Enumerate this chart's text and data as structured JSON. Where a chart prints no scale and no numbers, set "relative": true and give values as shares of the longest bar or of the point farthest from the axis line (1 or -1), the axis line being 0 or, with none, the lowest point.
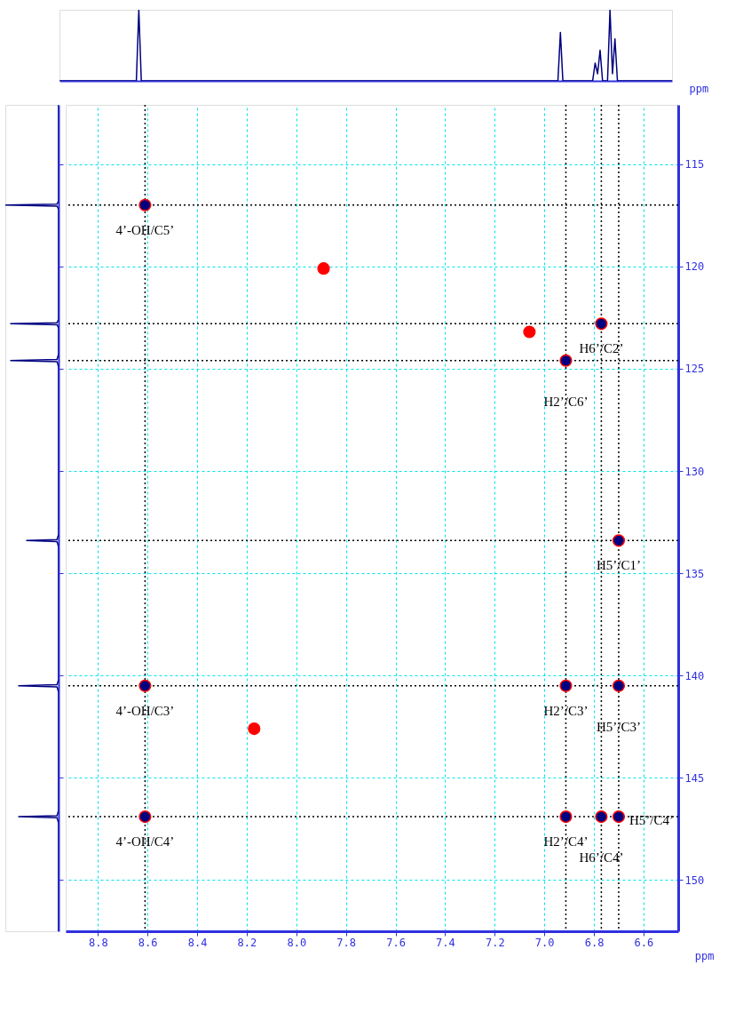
{
  "chart_data": [
    {
      "type": "line",
      "relative": true,
      "tick_labels": false,
      "categories": [
        null,
        null,
        null,
        null,
        null,
        null,
        null,
        null,
        null,
        null,
        null,
        null,
        null,
        null,
        null,
        null,
        null,
        null,
        null,
        null,
        null,
        null,
        null,
        null,
        null,
        null,
        null,
        null,
        null,
        null,
        null,
        null,
        null,
        null,
        null,
        null,
        null,
        null,
        null,
        null,
        null,
        null,
        null,
        null,
        null,
        null,
        null,
        null,
        null,
        null,
        null,
        null,
        null,
        null,
        null,
        null,
        null,
        null,
        null,
        null,
        null,
        null,
        null,
        null,
        null,
        null,
        null,
        null,
        null,
        null,
        null,
        null,
        null,
        null,
        null,
        null,
        null,
        null,
        null,
        null,
        null,
        null,
        null,
        null,
        null,
        null,
        null,
        null,
        null,
        null,
        null,
        null,
        null,
        null,
        null,
        null,
        null,
        null,
        null,
        null,
        null,
        null,
        null,
        null,
        null,
        null,
        null,
        null,
        null,
        null,
        null,
        null,
        null,
        null,
        null,
        null,
        null,
        null,
        null,
        null,
        null,
        null,
        null,
        null,
        null,
        null,
        null,
        null,
        null,
        null,
        null,
        null,
        null,
        null,
        null,
        null,
        null,
        null,
        null,
        null,
        null,
        null,
        null,
        null,
        null,
        null,
        null,
        null,
        null,
        null,
        null,
        null,
        null,
        null,
        null,
        null,
        null,
        null,
        null,
        null,
        null,
        null,
        null,
        null,
        null,
        null,
        null,
        null,
        null,
        null,
        null,
        null,
        null,
        null,
        null,
        null,
        null,
        null,
        null,
        null,
        null,
        null,
        null,
        null,
        null,
        null,
        null,
        null,
        null,
        null,
        null,
        null,
        null,
        null,
        null,
        null,
        null,
        null,
        null,
        null,
        null,
        null,
        null,
        null,
        null,
        null,
        null,
        null,
        null,
        null,
        null,
        null,
        null,
        null,
        null,
        null,
        null,
        null,
        null,
        null,
        null,
        null,
        null,
        null,
        null,
        null,
        null,
        null,
        null,
        null,
        null,
        null,
        null,
        null,
        null,
        null,
        null,
        null,
        null,
        null,
        null,
        null,
        null,
        null,
        null,
        null,
        null,
        null
      ],
      "series": [
        {
          "color": "#000080",
          "values": [
            0,
            0,
            0,
            0,
            0,
            0,
            0,
            0,
            0,
            0,
            0,
            0,
            0,
            0,
            0,
            0,
            0,
            0,
            0,
            0,
            0,
            0,
            0,
            0,
            0,
            0,
            0,
            0,
            0,
            0,
            0,
            0,
            1,
            0,
            0,
            0,
            0,
            0,
            0,
            0,
            0,
            0,
            0,
            0,
            0,
            0,
            0,
            0,
            0,
            0,
            0,
            0,
            0,
            0,
            0,
            0,
            0,
            0,
            0,
            0,
            0,
            0,
            0,
            0,
            0,
            0,
            0,
            0,
            0,
            0,
            0,
            0,
            0,
            0,
            0,
            0,
            0,
            0,
            0,
            0,
            0,
            0,
            0,
            0,
            0,
            0,
            0,
            0,
            0,
            0,
            0,
            0,
            0,
            0,
            0,
            0,
            0,
            0,
            0,
            0,
            0,
            0,
            0,
            0,
            0,
            0,
            0,
            0,
            0,
            0,
            0,
            0,
            0,
            0,
            0,
            0,
            0,
            0,
            0,
            0,
            0,
            0,
            0,
            0,
            0,
            0,
            0,
            0,
            0,
            0,
            0,
            0,
            0,
            0,
            0,
            0,
            0,
            0,
            0,
            0,
            0,
            0,
            0,
            0,
            0,
            0,
            0,
            0,
            0,
            0,
            0,
            0,
            0,
            0,
            0,
            0,
            0,
            0,
            0,
            0,
            0,
            0,
            0,
            0,
            0,
            0,
            0,
            0,
            0,
            0,
            0,
            0,
            0,
            0,
            0,
            0,
            0,
            0,
            0,
            0,
            0,
            0,
            0,
            0,
            0,
            0,
            0,
            0,
            0,
            0,
            0,
            0,
            0,
            0,
            0,
            0,
            0,
            0,
            0,
            0,
            0,
            0,
            0.68,
            0,
            0,
            0,
            0,
            0,
            0,
            0,
            0,
            0,
            0,
            0,
            0,
            0,
            0.25,
            0.1,
            0.43,
            0,
            0,
            0,
            1,
            0.1,
            0.59,
            0,
            0,
            0,
            0,
            0,
            0,
            0,
            0,
            0,
            0,
            0,
            0,
            0,
            0,
            0,
            0,
            0,
            0,
            0,
            0,
            0,
            0,
            0
          ]
        }
      ]
    },
    {
      "type": "line",
      "orientation": "horizontal",
      "relative": true,
      "ylim": [
        152.5,
        112.1
      ],
      "tick_labels": false,
      "yticks": [
        {
          "value": 115,
          "label": null
        },
        {
          "value": 120,
          "label": null
        },
        {
          "value": 125,
          "label": null
        },
        {
          "value": 130,
          "label": null
        },
        {
          "value": 135,
          "label": null
        },
        {
          "value": 140,
          "label": null
        },
        {
          "value": 145,
          "label": null
        },
        {
          "value": 150,
          "label": null
        }
      ],
      "series": [
        {
          "color": "#000080",
          "x": [
            112.1,
            116.8,
            116.95,
            117.0,
            117.05,
            117.2,
            122.6,
            122.75,
            122.8,
            122.85,
            123.0,
            124.3,
            124.55,
            124.6,
            124.65,
            124.9,
            133.1,
            133.35,
            133.4,
            133.45,
            133.7,
            140.2,
            140.45,
            140.5,
            140.55,
            140.8,
            146.6,
            146.85,
            146.9,
            146.95,
            147.2,
            152.5
          ],
          "values": [
            0,
            0,
            -0.03,
            -1,
            -0.03,
            0,
            0,
            -0.03,
            -0.9,
            -0.03,
            0,
            0,
            -0.03,
            -0.9,
            -0.03,
            0,
            0,
            -0.03,
            -0.6,
            -0.03,
            0,
            0,
            -0.03,
            -0.75,
            -0.03,
            0,
            0,
            -0.03,
            -0.75,
            -0.03,
            0,
            0
          ]
        }
      ]
    },
    {
      "type": "scatter",
      "xlabel": "ppm",
      "ylabel": "ppm",
      "xlim": [
        8.93,
        6.46
      ],
      "ylim": [
        152.5,
        112.1
      ],
      "xticks": [
        8.8,
        8.6,
        8.4,
        8.2,
        {
          "value": 8,
          "label": "8.0"
        },
        7.8,
        7.6,
        7.4,
        7.2,
        {
          "value": 7,
          "label": "7.0"
        },
        6.8,
        6.6
      ],
      "yticks": [
        115,
        120,
        125,
        130,
        135,
        140,
        145,
        150
      ],
      "grid": true,
      "marker": "circle",
      "series": [
        {
          "color": "#000080",
          "x": [
            8.61,
            8.61,
            8.61,
            6.913,
            6.913,
            6.913,
            6.77,
            6.77,
            6.7,
            6.7,
            6.7
          ],
          "values": [
            117.0,
            140.5,
            146.9,
            124.6,
            140.5,
            146.9,
            122.8,
            146.9,
            133.4,
            140.5,
            146.9
          ]
        },
        {
          "color": "#ff0000",
          "x": [
            7.89,
            7.06,
            8.17
          ],
          "values": [
            120.1,
            123.2,
            142.6
          ]
        }
      ],
      "ref_lines": [
        {
          "axis": "x",
          "value": 8.61,
          "color": "#000000",
          "line_style": "dotted"
        },
        {
          "axis": "x",
          "value": 6.913,
          "color": "#000000",
          "line_style": "dotted"
        },
        {
          "axis": "x",
          "value": 6.77,
          "color": "#000000",
          "line_style": "dotted"
        },
        {
          "axis": "x",
          "value": 6.7,
          "color": "#000000",
          "line_style": "dotted"
        },
        {
          "axis": "y",
          "value": 117.0,
          "color": "#000000",
          "line_style": "dotted"
        },
        {
          "axis": "y",
          "value": 122.8,
          "color": "#000000",
          "line_style": "dotted"
        },
        {
          "axis": "y",
          "value": 124.6,
          "color": "#000000",
          "line_style": "dotted"
        },
        {
          "axis": "y",
          "value": 133.4,
          "color": "#000000",
          "line_style": "dotted"
        },
        {
          "axis": "y",
          "value": 140.5,
          "color": "#000000",
          "line_style": "dotted"
        },
        {
          "axis": "y",
          "value": 146.9,
          "color": "#000000",
          "line_style": "dotted"
        }
      ],
      "annotations": [
        {
          "text": "4’-OH/C5’",
          "x": 8.61,
          "y": 117.0
        },
        {
          "text": "H6’/C2’",
          "x": 6.77,
          "y": 122.8
        },
        {
          "text": "H2’/C6’",
          "x": 6.913,
          "y": 124.6
        },
        {
          "text": "H5’/C1’",
          "x": 6.7,
          "y": 133.4
        },
        {
          "text": "4’-OH/C3’",
          "x": 8.61,
          "y": 140.5
        },
        {
          "text": "H2’/C3’",
          "x": 6.913,
          "y": 140.5
        },
        {
          "text": "H5’/C3’",
          "x": 6.7,
          "y": 140.5
        },
        {
          "text": "4’-OH/C4’",
          "x": 8.61,
          "y": 146.9
        },
        {
          "text": "H2’/C4’",
          "x": 6.913,
          "y": 146.9
        },
        {
          "text": "H6’/C4’",
          "x": 6.77,
          "y": 146.9
        },
        {
          "text": "H5’/C4’",
          "x": 6.7,
          "y": 146.9
        }
      ]
    }
  ]
}
